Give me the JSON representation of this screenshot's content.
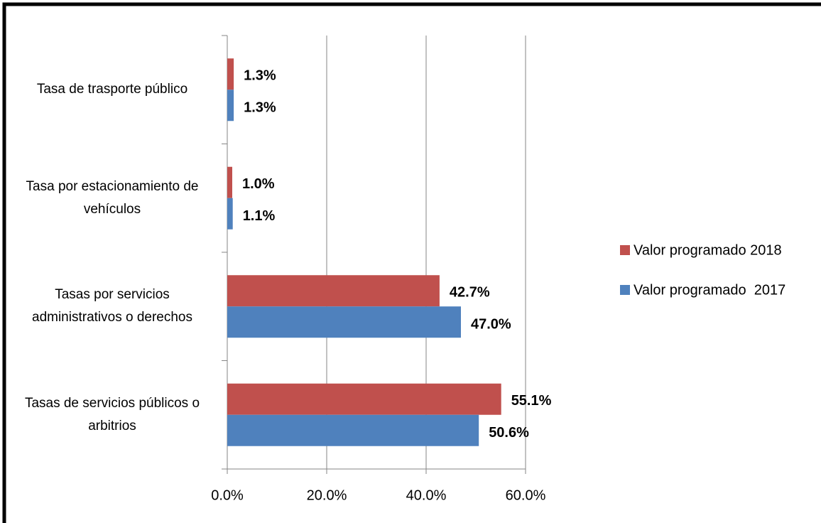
{
  "chart_data": {
    "type": "hbar",
    "categories": [
      "Tasas de servicios públicos o arbitrios",
      "Tasas por servicios administrativos o derechos",
      "Tasa por estacionamiento de vehículos",
      "Tasa de trasporte público"
    ],
    "series": [
      {
        "name": "Valor programado 2018",
        "color": "#c0504d",
        "values": [
          55.1,
          42.7,
          1.0,
          1.3
        ],
        "value_labels": [
          "55.1%",
          "42.7%",
          "1.0%",
          "1.3%"
        ]
      },
      {
        "name": "Valor programado  2017",
        "color": "#4f81bd",
        "values": [
          50.6,
          47.0,
          1.1,
          1.3
        ],
        "value_labels": [
          "50.6%",
          "47.0%",
          "1.1%",
          "1.3%"
        ]
      }
    ],
    "xlim": [
      0,
      60
    ],
    "xticks": [
      {
        "value": 0,
        "label": "0.0%"
      },
      {
        "value": 20,
        "label": "20.0%"
      },
      {
        "value": 40,
        "label": "40.0%"
      },
      {
        "value": 60,
        "label": "60.0%"
      }
    ],
    "grid": true,
    "legend": "right"
  }
}
